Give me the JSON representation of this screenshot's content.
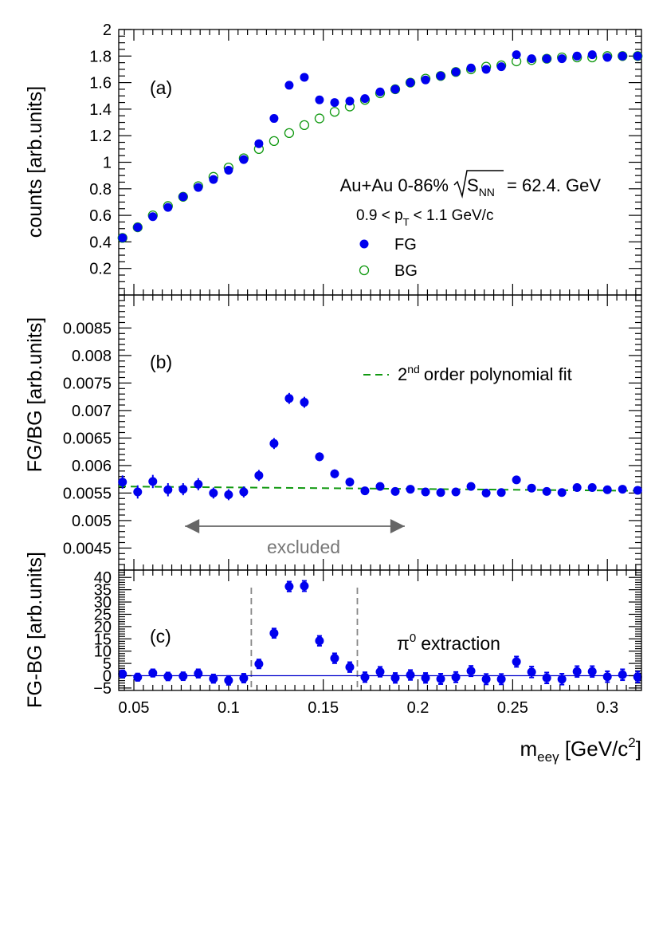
{
  "figure": {
    "x_axis_label_base": "m",
    "x_axis_label_sub": "eeγ",
    "x_axis_label_unit": " [GeV/c",
    "x_axis_label_sup": "2",
    "x_axis_label_end": "]",
    "x_ticks": [
      "0.05",
      "0.1",
      "0.15",
      "0.2",
      "0.25",
      "0.3"
    ]
  },
  "panel_a": {
    "tag": "(a)",
    "ylabel": "counts [arb.units]",
    "y_ticks": [
      "0.2",
      "0.4",
      "0.6",
      "0.8",
      "1",
      "1.2",
      "1.4",
      "1.6",
      "1.8",
      "2"
    ],
    "system": "Au+Au 0-86%",
    "sqrt_s_base": "S",
    "sqrt_s_sub": "NN",
    "energy": "= 62.4. GeV",
    "pt_lo": "0.9 < p",
    "pt_sub": "T",
    "pt_hi": "< 1.1 GeV/c",
    "legend_fg": "FG",
    "legend_bg": "BG"
  },
  "panel_b": {
    "tag": "(b)",
    "ylabel": "FG/BG [arb.units]",
    "y_ticks": [
      "0.0045",
      "0.005",
      "0.0055",
      "0.006",
      "0.0065",
      "0.007",
      "0.0075",
      "0.008",
      "0.0085"
    ],
    "fit_order": "2",
    "fit_sup": "nd",
    "fit_text": "order polynomial fit",
    "excluded": "excluded"
  },
  "panel_c": {
    "tag": "(c)",
    "ylabel": "FG-BG [arb.units]",
    "y_ticks": [
      "−5",
      "0",
      "5",
      "10",
      "15",
      "20",
      "25",
      "30",
      "35",
      "40"
    ],
    "pi_symbol": "π",
    "pi_sup": "0",
    "extraction": "extraction"
  },
  "colors": {
    "fg": "#0000ee",
    "bg": "#119911",
    "fit": "#119911",
    "zero_line": "#0000cc",
    "excluded": "#666666",
    "window": "#888888"
  },
  "chart_data": [
    {
      "type": "scatter",
      "panel": "a",
      "xlim": [
        0.042,
        0.318
      ],
      "ylim": [
        0,
        2
      ],
      "x": [
        0.044,
        0.052,
        0.06,
        0.068,
        0.076,
        0.084,
        0.092,
        0.1,
        0.108,
        0.116,
        0.124,
        0.132,
        0.14,
        0.148,
        0.156,
        0.164,
        0.172,
        0.18,
        0.188,
        0.196,
        0.204,
        0.212,
        0.22,
        0.228,
        0.236,
        0.244,
        0.252,
        0.26,
        0.268,
        0.276,
        0.284,
        0.292,
        0.3,
        0.308,
        0.316
      ],
      "series": [
        {
          "name": "FG",
          "values": [
            0.43,
            0.51,
            0.59,
            0.66,
            0.74,
            0.81,
            0.87,
            0.94,
            1.02,
            1.14,
            1.33,
            1.58,
            1.64,
            1.47,
            1.45,
            1.46,
            1.48,
            1.53,
            1.55,
            1.6,
            1.62,
            1.65,
            1.68,
            1.71,
            1.7,
            1.72,
            1.81,
            1.78,
            1.78,
            1.78,
            1.8,
            1.81,
            1.79,
            1.8,
            1.8
          ]
        },
        {
          "name": "BG",
          "values": [
            0.43,
            0.51,
            0.6,
            0.67,
            0.74,
            0.82,
            0.89,
            0.96,
            1.03,
            1.1,
            1.16,
            1.22,
            1.28,
            1.33,
            1.38,
            1.42,
            1.47,
            1.52,
            1.55,
            1.6,
            1.63,
            1.65,
            1.68,
            1.7,
            1.72,
            1.73,
            1.76,
            1.77,
            1.78,
            1.79,
            1.79,
            1.79,
            1.8,
            1.8,
            1.8
          ]
        }
      ]
    },
    {
      "type": "scatter",
      "panel": "b",
      "xlim": [
        0.042,
        0.318
      ],
      "ylim": [
        0.0041,
        0.0091
      ],
      "x": [
        0.044,
        0.052,
        0.06,
        0.068,
        0.076,
        0.084,
        0.092,
        0.1,
        0.108,
        0.116,
        0.124,
        0.132,
        0.14,
        0.148,
        0.156,
        0.164,
        0.172,
        0.18,
        0.188,
        0.196,
        0.204,
        0.212,
        0.22,
        0.228,
        0.236,
        0.244,
        0.252,
        0.26,
        0.268,
        0.276,
        0.284,
        0.292,
        0.3,
        0.308,
        0.316
      ],
      "series": [
        {
          "name": "FG/BG",
          "values": [
            0.0057,
            0.00552,
            0.00571,
            0.00556,
            0.00557,
            0.00566,
            0.0055,
            0.00547,
            0.00552,
            0.00582,
            0.0064,
            0.00722,
            0.00715,
            0.00616,
            0.00585,
            0.0057,
            0.00554,
            0.00562,
            0.00553,
            0.00557,
            0.00552,
            0.00551,
            0.00552,
            0.00562,
            0.0055,
            0.00551,
            0.00574,
            0.00559,
            0.00553,
            0.00551,
            0.0056,
            0.0056,
            0.00556,
            0.00557,
            0.00555
          ]
        }
      ],
      "error": [
        0.00012,
        0.00012,
        0.00012,
        0.00012,
        0.00011,
        0.00011,
        0.0001,
        0.0001,
        0.0001,
        0.0001,
        0.0001,
        0.0001,
        0.0001,
        8e-05,
        8e-05,
        8e-05,
        7e-05,
        7e-05,
        7e-05,
        7e-05,
        7e-05,
        7e-05,
        7e-05,
        7e-05,
        7e-05,
        7e-05,
        7e-05,
        7e-05,
        7e-05,
        7e-05,
        7e-05,
        7e-05,
        7e-05,
        7e-05,
        7e-05
      ],
      "fit": {
        "type": "2nd order polynomial",
        "x": [
          0.042,
          0.318
        ],
        "y": [
          0.00562,
          0.00554
        ]
      },
      "excluded_range": [
        0.077,
        0.193
      ]
    },
    {
      "type": "scatter",
      "panel": "c",
      "xlim": [
        0.042,
        0.318
      ],
      "ylim": [
        -6,
        43
      ],
      "x": [
        0.044,
        0.052,
        0.06,
        0.068,
        0.076,
        0.084,
        0.092,
        0.1,
        0.108,
        0.116,
        0.124,
        0.132,
        0.14,
        0.148,
        0.156,
        0.164,
        0.172,
        0.18,
        0.188,
        0.196,
        0.204,
        0.212,
        0.22,
        0.228,
        0.236,
        0.244,
        0.252,
        0.26,
        0.268,
        0.276,
        0.284,
        0.292,
        0.3,
        0.308,
        0.316
      ],
      "series": [
        {
          "name": "FG-BG",
          "values": [
            0.7,
            -0.6,
            1.1,
            -0.3,
            -0.2,
            0.9,
            -1.2,
            -1.9,
            -1.0,
            4.8,
            17.3,
            36.3,
            36.5,
            14.2,
            7.1,
            3.5,
            -0.6,
            1.6,
            -0.9,
            0.3,
            -0.9,
            -1.3,
            -0.6,
            1.9,
            -1.4,
            -1.4,
            5.7,
            1.5,
            -0.9,
            -1.4,
            1.7,
            1.7,
            -0.4,
            0.4,
            -0.5
          ]
        }
      ],
      "error": [
        1.5,
        1.5,
        1.5,
        1.6,
        1.6,
        1.7,
        1.7,
        1.8,
        1.8,
        1.8,
        1.9,
        2.0,
        2.1,
        2.0,
        2.0,
        2.0,
        2.0,
        2.0,
        2.0,
        2.0,
        2.0,
        2.1,
        2.1,
        2.1,
        2.1,
        2.1,
        2.1,
        2.2,
        2.2,
        2.2,
        2.2,
        2.2,
        2.2,
        2.2,
        2.2
      ],
      "zero_line": 0,
      "window": [
        0.112,
        0.168
      ]
    }
  ]
}
